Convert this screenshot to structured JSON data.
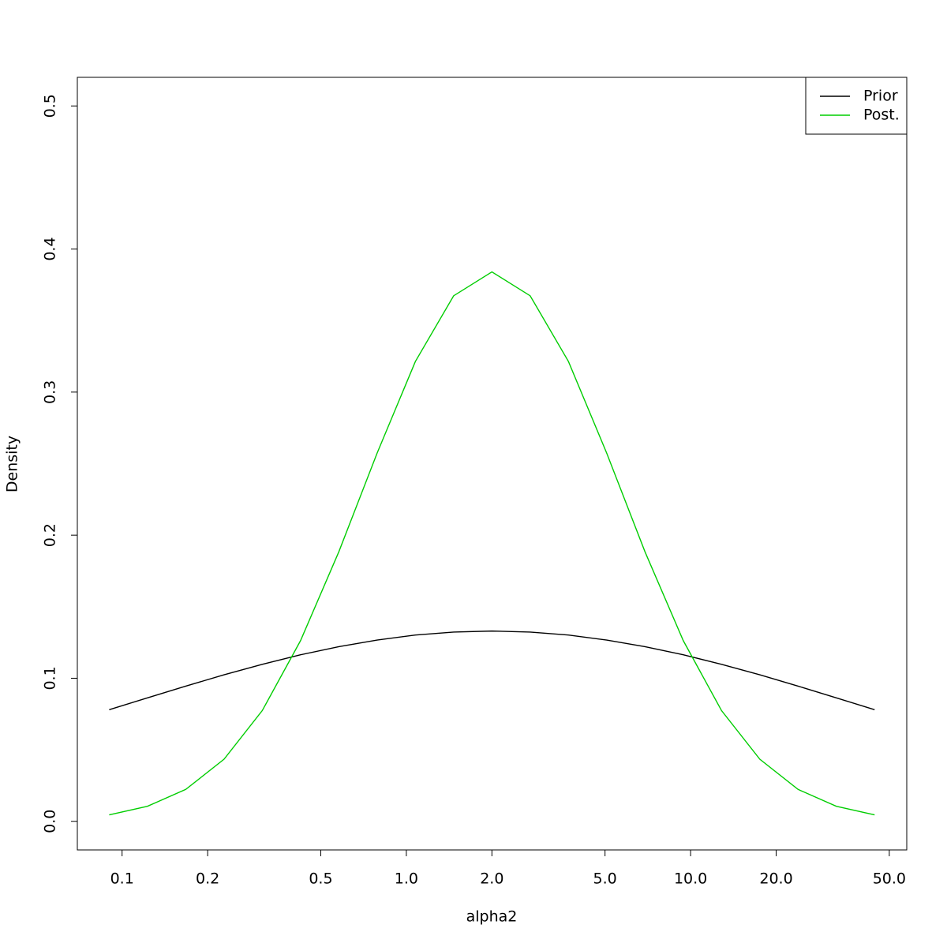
{
  "chart_data": {
    "type": "line",
    "x_label": "alpha2",
    "y_label": "Density",
    "x": [
      0.0901,
      0.1228,
      0.1675,
      0.2284,
      0.3113,
      0.4245,
      0.5788,
      0.7891,
      1.0759,
      1.4669,
      2,
      2.7269,
      3.7179,
      5.069,
      6.9112,
      9.4229,
      12.8475,
      17.5166,
      23.8826,
      32.562,
      44.396
    ],
    "series": [
      {
        "name": "Prior",
        "color": "#000000",
        "values": [
          0.078,
          0.0863,
          0.0945,
          0.1024,
          0.1097,
          0.1164,
          0.1221,
          0.1267,
          0.1302,
          0.1323,
          0.133,
          0.1323,
          0.1302,
          0.1267,
          0.1221,
          0.1164,
          0.1097,
          0.1024,
          0.0945,
          0.0863,
          0.078
        ]
      },
      {
        "name": "Post.",
        "color": "#00cd00",
        "values": [
          0.0045,
          0.0105,
          0.0223,
          0.0434,
          0.0774,
          0.1263,
          0.1884,
          0.2573,
          0.3214,
          0.3673,
          0.384,
          0.3673,
          0.3214,
          0.2573,
          0.1884,
          0.1263,
          0.0774,
          0.0434,
          0.0223,
          0.0105,
          0.0045
        ]
      }
    ],
    "x_log": true,
    "xlim": [
      0.0696,
      57.6
    ],
    "xticks": [
      0.1,
      0.2,
      0.5,
      {
        "value": 1,
        "label": "1.0"
      },
      {
        "value": 2,
        "label": "2.0"
      },
      {
        "value": 5,
        "label": "5.0"
      },
      {
        "value": 10,
        "label": "10.0"
      },
      {
        "value": 20,
        "label": "20.0"
      },
      {
        "value": 50,
        "label": "50.0"
      }
    ],
    "ylim": [
      -0.02,
      0.52
    ],
    "yticks": [
      {
        "value": 0,
        "label": "0.0"
      },
      0.1,
      0.2,
      0.3,
      0.4,
      0.5
    ],
    "legend": "top-right"
  }
}
